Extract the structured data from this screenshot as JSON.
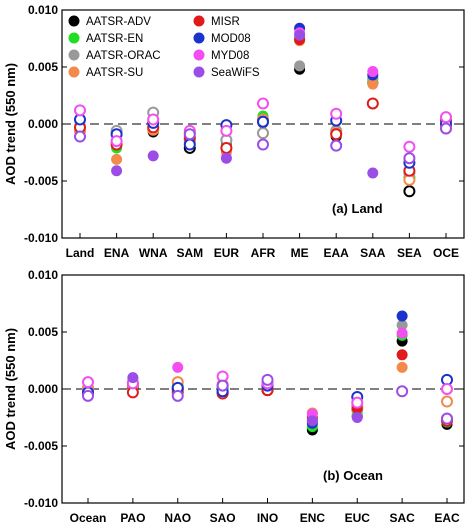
{
  "legend": [
    {
      "name": "AATSR-ADV",
      "color": "#000000"
    },
    {
      "name": "AATSR-EN",
      "color": "#22dd22"
    },
    {
      "name": "AATSR-ORAC",
      "color": "#999999"
    },
    {
      "name": "AATSR-SU",
      "color": "#f28a4b"
    },
    {
      "name": "MISR",
      "color": "#e01b1b"
    },
    {
      "name": "MOD08",
      "color": "#1a33cc"
    },
    {
      "name": "MYD08",
      "color": "#f24ef2"
    },
    {
      "name": "SeaWiFS",
      "color": "#9b4de6"
    }
  ],
  "chart_data": [
    {
      "type": "scatter",
      "panel_label": "(a) Land",
      "ylabel": "AOD trend (550 nm)",
      "ylim": [
        -0.01,
        0.01
      ],
      "yticks": [
        "0.010",
        "0.005",
        "0.000",
        "-0.005",
        "-0.010"
      ],
      "categories": [
        "Land",
        "ENA",
        "WNA",
        "SAM",
        "EUR",
        "AFR",
        "ME",
        "EAA",
        "SAA",
        "SEA",
        "OCE"
      ],
      "series": [
        {
          "name": "AATSR-ADV",
          "color": "#000000",
          "values": [
            -0.0002,
            -0.0019,
            -0.0007,
            -0.0021,
            -0.0018,
            0.0001,
            0.0048,
            -0.0011,
            0.0036,
            -0.0059,
            -0.0002
          ],
          "filled": [
            true,
            true,
            true,
            false,
            true,
            true,
            true,
            true,
            true,
            false,
            true
          ]
        },
        {
          "name": "AATSR-EN",
          "color": "#22dd22",
          "values": [
            -0.0001,
            -0.0021,
            -0.0002,
            -0.0013,
            -0.0019,
            0.0007,
            0.0075,
            -0.0007,
            0.0039,
            -0.0047,
            -0.0001
          ],
          "filled": [
            true,
            true,
            true,
            false,
            true,
            true,
            true,
            true,
            true,
            false,
            true
          ]
        },
        {
          "name": "AATSR-ORAC",
          "color": "#999999",
          "values": [
            0.0002,
            -0.0006,
            0.001,
            -0.0008,
            -0.0014,
            -0.0008,
            0.0051,
            -0.0006,
            0.0041,
            -0.0043,
            -0.0002
          ],
          "filled": [
            true,
            false,
            false,
            false,
            false,
            false,
            true,
            false,
            true,
            false,
            false
          ]
        },
        {
          "name": "AATSR-SU",
          "color": "#f28a4b",
          "values": [
            -0.0006,
            -0.0031,
            -0.0005,
            -0.0015,
            -0.0025,
            0.0004,
            0.0073,
            -0.0008,
            0.0035,
            -0.0049,
            -0.0004
          ],
          "filled": [
            false,
            true,
            false,
            false,
            true,
            false,
            true,
            false,
            true,
            false,
            false
          ]
        },
        {
          "name": "MISR",
          "color": "#e01b1b",
          "values": [
            -0.0003,
            -0.0018,
            -0.0003,
            -0.0012,
            -0.0021,
            0.0002,
            0.0074,
            -0.0009,
            0.0018,
            -0.0041,
            0.0003
          ],
          "filled": [
            false,
            false,
            false,
            false,
            false,
            false,
            true,
            false,
            false,
            false,
            false
          ]
        },
        {
          "name": "MOD08",
          "color": "#1a33cc",
          "values": [
            0.0004,
            -0.0009,
            0.0001,
            -0.0018,
            -0.0001,
            0.0002,
            0.0084,
            0.0003,
            0.0043,
            -0.0034,
            0.0
          ],
          "filled": [
            false,
            false,
            false,
            false,
            false,
            false,
            true,
            false,
            true,
            false,
            false
          ]
        },
        {
          "name": "MYD08",
          "color": "#f24ef2",
          "values": [
            0.0012,
            -0.0015,
            0.0004,
            -0.0006,
            -0.0006,
            0.0018,
            0.008,
            0.0009,
            0.0046,
            -0.002,
            0.0006
          ],
          "filled": [
            false,
            false,
            false,
            false,
            false,
            false,
            true,
            false,
            true,
            false,
            false
          ]
        },
        {
          "name": "SeaWiFS",
          "color": "#9b4de6",
          "values": [
            -0.0011,
            -0.0041,
            -0.0028,
            -0.0009,
            -0.003,
            -0.0018,
            0.0078,
            -0.0019,
            -0.0043,
            -0.003,
            -0.0004
          ],
          "filled": [
            false,
            true,
            true,
            false,
            true,
            false,
            true,
            false,
            true,
            false,
            false
          ]
        }
      ]
    },
    {
      "type": "scatter",
      "panel_label": "(b) Ocean",
      "ylabel": "AOD trend (550 nm)",
      "ylim": [
        -0.01,
        0.01
      ],
      "yticks": [
        "0.010",
        "0.005",
        "0.000",
        "-0.005",
        "-0.010"
      ],
      "categories": [
        "Ocean",
        "PAO",
        "NAO",
        "SAO",
        "INO",
        "ENC",
        "EUC",
        "SAC",
        "EAC"
      ],
      "series": [
        {
          "name": "AATSR-ADV",
          "color": "#000000",
          "values": [
            -0.0003,
            0.0002,
            0.0,
            -0.0003,
            -0.0001,
            -0.0036,
            -0.0024,
            0.0042,
            -0.0031
          ],
          "filled": [
            false,
            false,
            false,
            false,
            false,
            true,
            true,
            true,
            true
          ]
        },
        {
          "name": "AATSR-EN",
          "color": "#22dd22",
          "values": [
            -0.0002,
            0.0004,
            0.0002,
            0.0001,
            0.0001,
            -0.0033,
            -0.0022,
            0.0047,
            -0.0029
          ],
          "filled": [
            false,
            false,
            false,
            false,
            false,
            true,
            true,
            true,
            true
          ]
        },
        {
          "name": "AATSR-ORAC",
          "color": "#999999",
          "values": [
            0.0,
            0.0009,
            -0.0001,
            0.0003,
            0.0005,
            -0.0027,
            -0.0018,
            0.0056,
            -0.0026
          ],
          "filled": [
            false,
            true,
            false,
            false,
            false,
            true,
            false,
            true,
            false
          ]
        },
        {
          "name": "AATSR-SU",
          "color": "#f28a4b",
          "values": [
            0.0001,
            0.0003,
            0.0006,
            0.0004,
            0.0002,
            -0.0021,
            -0.0015,
            0.0019,
            -0.0011
          ],
          "filled": [
            false,
            false,
            false,
            false,
            false,
            true,
            false,
            true,
            false
          ]
        },
        {
          "name": "MISR",
          "color": "#e01b1b",
          "values": [
            -0.0004,
            -0.0003,
            -0.0003,
            -0.0004,
            -0.0001,
            -0.0025,
            -0.0017,
            0.003,
            -0.0028
          ],
          "filled": [
            false,
            false,
            false,
            false,
            false,
            true,
            true,
            true,
            false
          ]
        },
        {
          "name": "MOD08",
          "color": "#1a33cc",
          "values": [
            -0.0003,
            0.0005,
            0.0001,
            -0.0002,
            0.0003,
            -0.003,
            -0.0007,
            0.0064,
            0.0008
          ],
          "filled": [
            false,
            false,
            false,
            false,
            false,
            true,
            false,
            true,
            false
          ]
        },
        {
          "name": "MYD08",
          "color": "#f24ef2",
          "values": [
            0.0006,
            0.0005,
            0.0019,
            0.0011,
            0.0005,
            -0.0022,
            -0.0012,
            0.0049,
            0.0
          ],
          "filled": [
            false,
            false,
            true,
            false,
            false,
            true,
            false,
            true,
            false
          ]
        },
        {
          "name": "SeaWiFS",
          "color": "#9b4de6",
          "values": [
            -0.0006,
            0.001,
            -0.0006,
            0.0003,
            0.0008,
            -0.0028,
            -0.0025,
            -0.0002,
            -0.0026
          ],
          "filled": [
            false,
            true,
            false,
            false,
            false,
            true,
            true,
            false,
            false
          ]
        }
      ]
    }
  ]
}
